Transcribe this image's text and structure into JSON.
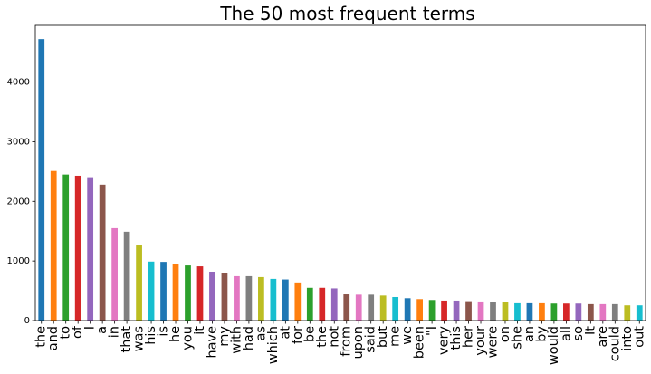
{
  "chart_data": {
    "type": "bar",
    "title": "The 50 most frequent terms",
    "xlabel": "",
    "ylabel": "",
    "ylim": [
      0,
      4950
    ],
    "yticks": [
      0,
      1000,
      2000,
      3000,
      4000
    ],
    "grid": false,
    "legend": "none",
    "categories": [
      "the",
      "and",
      "to",
      "of",
      "I",
      "a",
      "in",
      "that",
      "was",
      "his",
      "is",
      "he",
      "you",
      "it",
      "have",
      "my",
      "with",
      "had",
      "as",
      "which",
      "at",
      "for",
      "be",
      "the",
      "not",
      "from",
      "upon",
      "said",
      "but",
      "me",
      "we",
      "been",
      "\"I",
      "very",
      "this",
      "her",
      "your",
      "were",
      "on",
      "she",
      "an",
      "by",
      "would",
      "all",
      "so",
      "It",
      "are",
      "could",
      "into",
      "out"
    ],
    "values": [
      4720,
      2510,
      2450,
      2430,
      2390,
      2280,
      1550,
      1490,
      1260,
      990,
      985,
      945,
      925,
      910,
      820,
      800,
      745,
      745,
      730,
      700,
      690,
      640,
      550,
      550,
      540,
      440,
      435,
      435,
      420,
      395,
      375,
      360,
      345,
      335,
      335,
      325,
      320,
      315,
      305,
      290,
      290,
      290,
      285,
      285,
      285,
      275,
      275,
      275,
      255,
      255
    ],
    "colors": [
      "#1f77b4",
      "#ff7f0e",
      "#2ca02c",
      "#d62728",
      "#9467bd",
      "#8c564b",
      "#e377c2",
      "#7f7f7f",
      "#bcbd22",
      "#17becf"
    ]
  }
}
